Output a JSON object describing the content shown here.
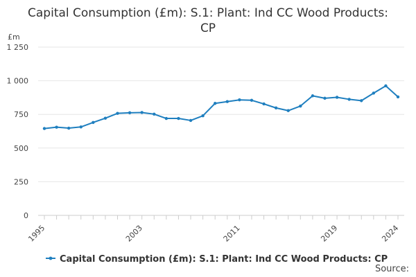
{
  "chart_data": {
    "type": "line",
    "title": "Capital Consumption (£m): S.1: Plant: Ind CC Wood Products: CP",
    "ylabel": "£m",
    "xlabel": "",
    "ylim": [
      0,
      1250
    ],
    "yticks": [
      0,
      250,
      500,
      750,
      1000,
      1250
    ],
    "ytick_labels": [
      "0",
      "250",
      "500",
      "750",
      "1 000",
      "1 250"
    ],
    "xlim": [
      1995,
      2024
    ],
    "xticks": [
      1995,
      2003,
      2011,
      2019,
      2024
    ],
    "xtick_labels": [
      "1995",
      "2003",
      "2011",
      "2019",
      "2024"
    ],
    "grid": true,
    "legend_position": "bottom",
    "x": [
      1995,
      1996,
      1997,
      1998,
      1999,
      2000,
      2001,
      2002,
      2003,
      2004,
      2005,
      2006,
      2007,
      2008,
      2009,
      2010,
      2011,
      2012,
      2013,
      2014,
      2015,
      2016,
      2017,
      2018,
      2019,
      2020,
      2021,
      2022,
      2023,
      2024
    ],
    "series": [
      {
        "name": "Capital Consumption (£m): S.1: Plant: Ind CC Wood Products: CP",
        "color": "#1f7fbf",
        "values": [
          645,
          655,
          648,
          657,
          690,
          722,
          758,
          762,
          764,
          752,
          720,
          720,
          705,
          740,
          832,
          845,
          858,
          855,
          828,
          798,
          778,
          812,
          888,
          870,
          877,
          862,
          852,
          908,
          962,
          880
        ]
      }
    ]
  },
  "source_label": "Source:"
}
